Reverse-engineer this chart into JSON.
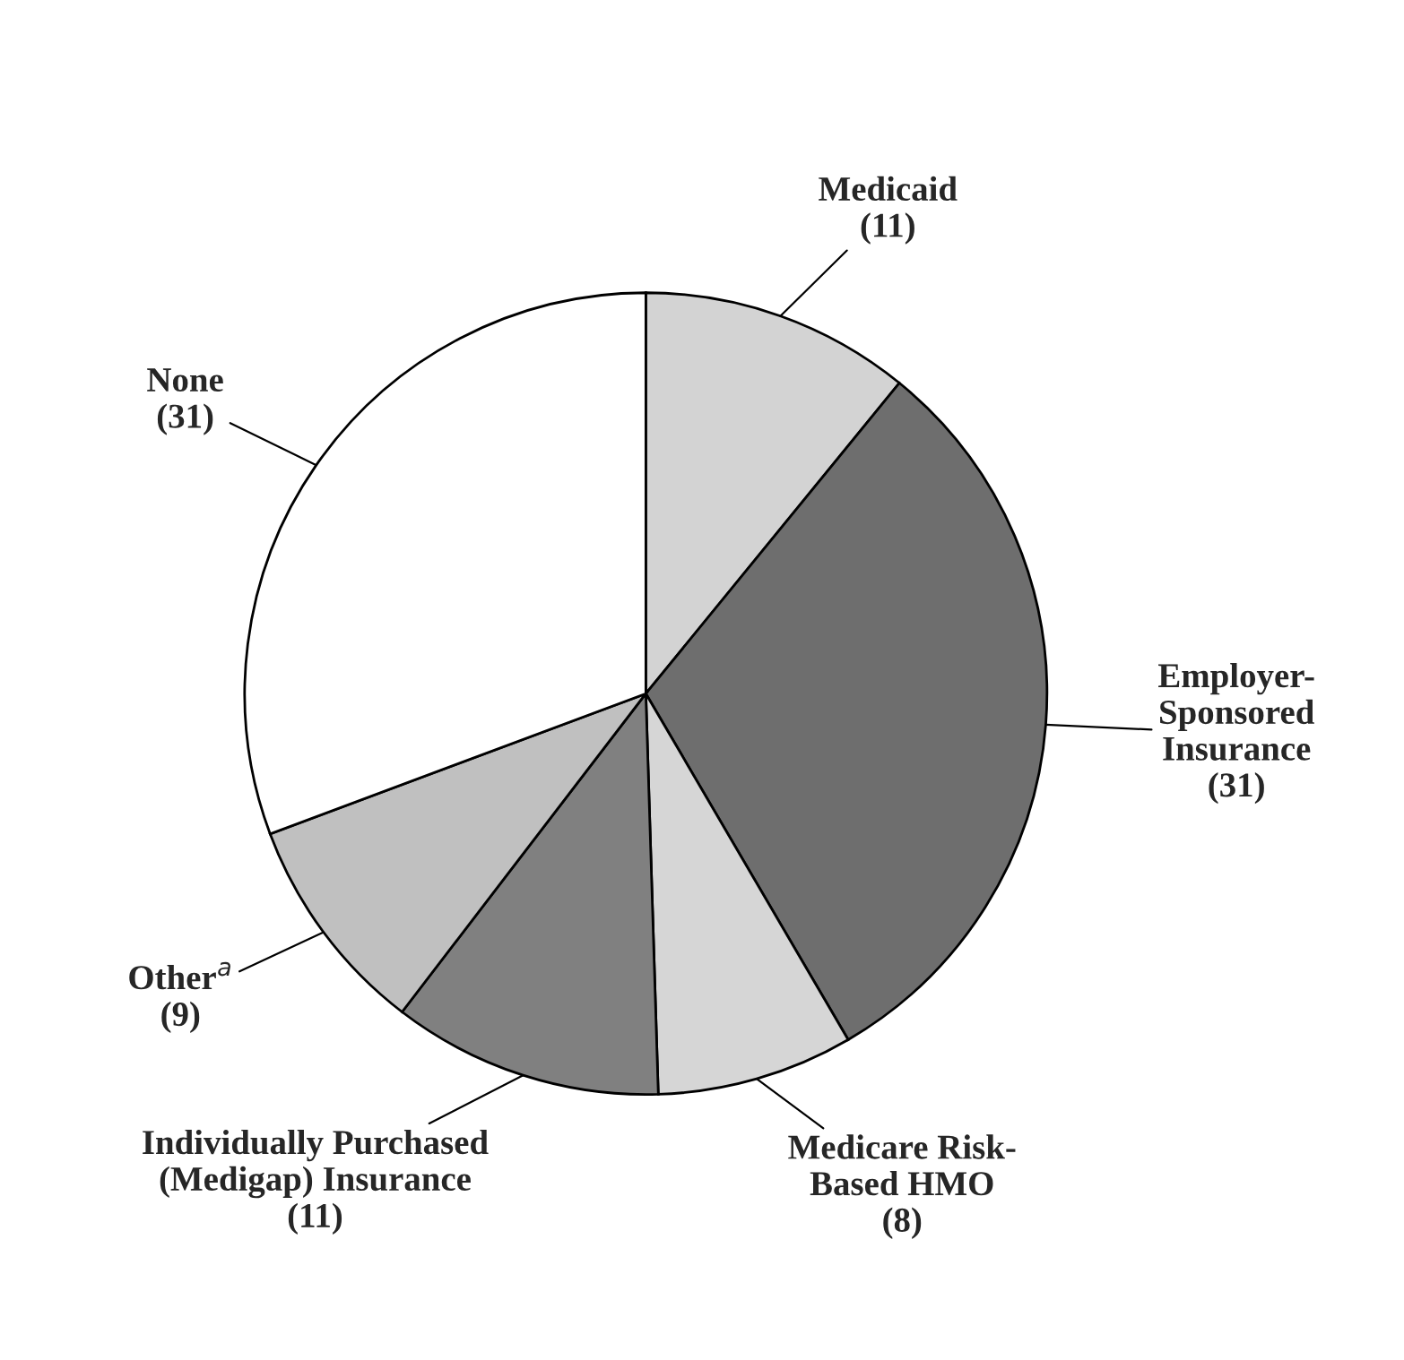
{
  "chart_data": {
    "type": "pie",
    "categories": [
      "Medicaid",
      "Employer-\nSponsored\nInsurance",
      "Medicare Risk-\nBased HMO",
      "Individually Purchased\n(Medigap) Insurance",
      "Other$^{a}$",
      "None"
    ],
    "values": [
      11,
      31,
      8,
      11,
      9,
      31
    ],
    "value_labels": [
      "(11)",
      "(31)",
      "(8)",
      "(11)",
      "(9)",
      "(31)"
    ],
    "colors": [
      "#d3d3d3",
      "#6e6e6e",
      "#d6d6d6",
      "#808080",
      "#c0c0c0",
      "#ffffff"
    ]
  }
}
